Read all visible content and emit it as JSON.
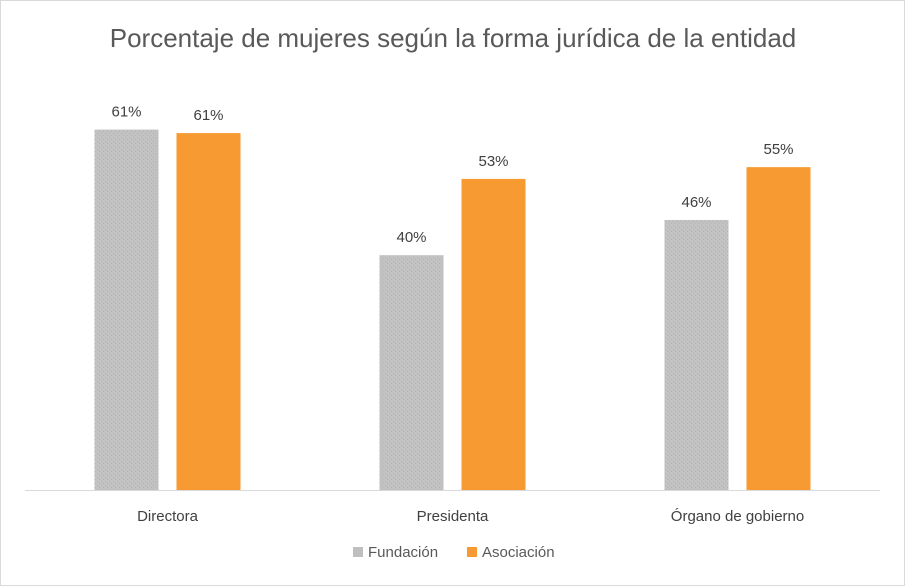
{
  "chart_data": {
    "type": "bar",
    "title": "Porcentaje de mujeres según la forma jurídica de la entidad",
    "categories": [
      "Directora",
      "Presidenta",
      "Órgano de gobierno"
    ],
    "series": [
      {
        "name": "Fundación",
        "values": [
          61.4,
          40,
          46
        ],
        "labels": [
          "61%",
          "40%",
          "46%"
        ],
        "color": "#bfbfbf"
      },
      {
        "name": "Asociación",
        "values": [
          60.8,
          53,
          55
        ],
        "labels": [
          "61%",
          "53%",
          "55%"
        ],
        "color": "#f79a32"
      }
    ],
    "xlabel": "",
    "ylabel": "",
    "ylim": [
      0,
      70
    ],
    "grid": false,
    "legend_position": "bottom"
  }
}
